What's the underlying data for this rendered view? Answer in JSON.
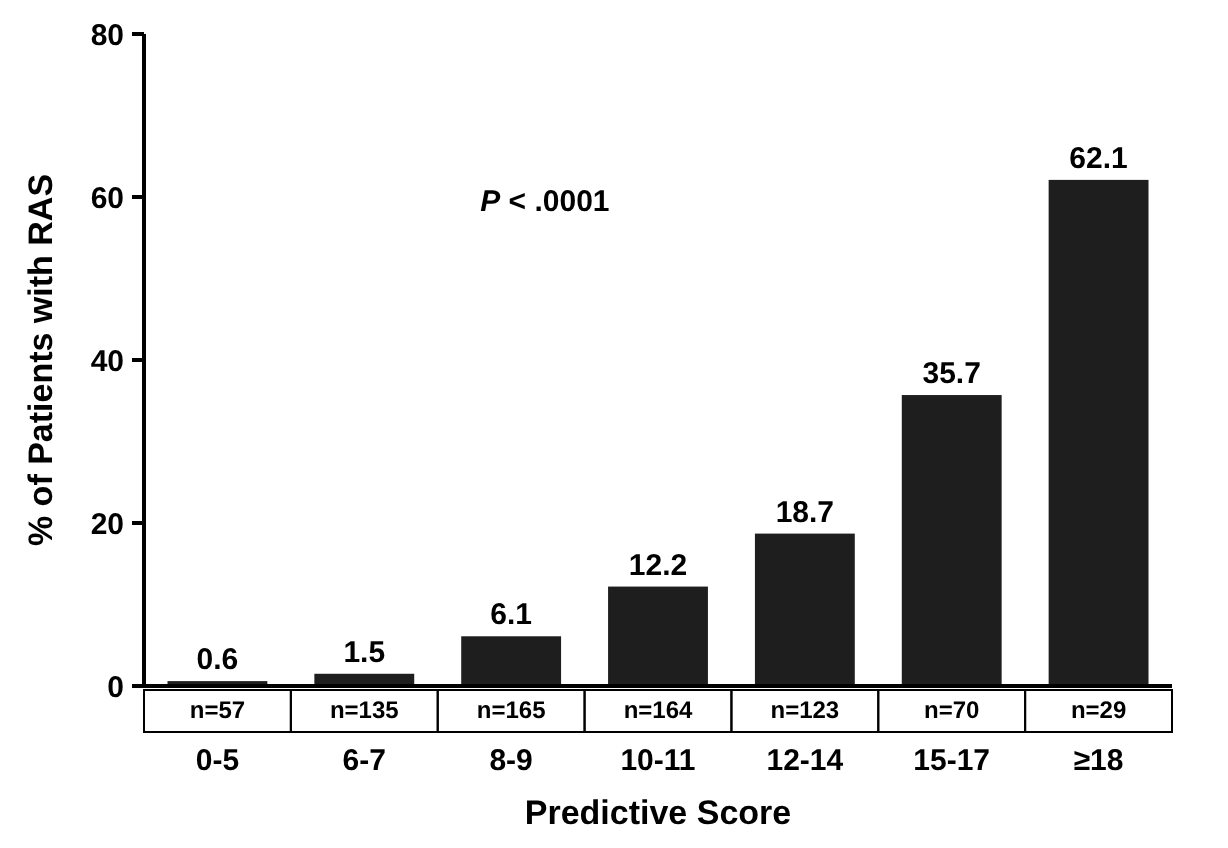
{
  "chart_data": {
    "type": "bar",
    "xlabel": "Predictive Score",
    "ylabel": "% of Patients with RAS",
    "categories": [
      "0-5",
      "6-7",
      "8-9",
      "10-11",
      "12-14",
      "15-17",
      "≥18"
    ],
    "values": [
      0.6,
      1.5,
      6.1,
      12.2,
      18.7,
      35.7,
      62.1
    ],
    "color": "#1e1e1e",
    "ylim": [
      0,
      80
    ],
    "yticks": [
      0,
      20,
      40,
      60,
      80
    ],
    "grid": false,
    "data_labels": true,
    "annotations": [
      {
        "text": "P < .0001"
      },
      "n=57",
      "n=135",
      "n=165",
      "n=164",
      "n=123",
      "n=70",
      "n=29"
    ]
  }
}
